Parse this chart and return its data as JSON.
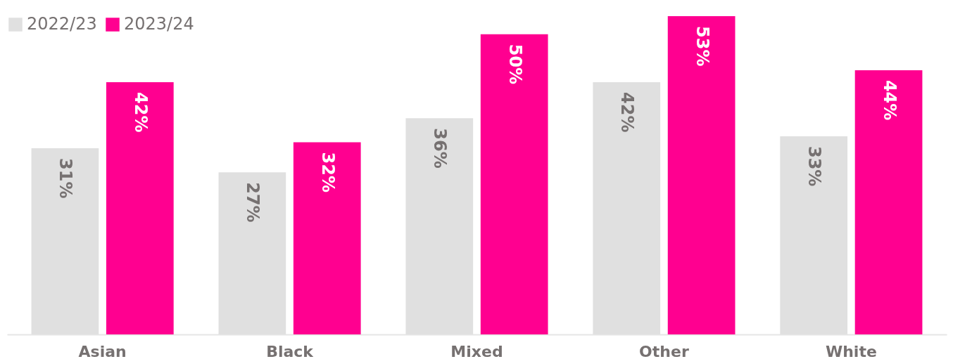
{
  "chart_data": {
    "type": "bar",
    "categories": [
      "Asian",
      "Black",
      "Mixed",
      "Other",
      "White"
    ],
    "legend": "top left",
    "series": [
      {
        "name": "2022/23",
        "color": "#e0e0e0",
        "values": [
          31,
          27,
          36,
          42,
          33
        ],
        "value_labels": [
          "31%",
          "27%",
          "36%",
          "42%",
          "33%"
        ]
      },
      {
        "name": "2023/24",
        "color": "#ff0090",
        "values": [
          42,
          32,
          50,
          53,
          44
        ],
        "value_labels": [
          "42%",
          "32%",
          "50%",
          "53%",
          "44%"
        ]
      }
    ]
  }
}
